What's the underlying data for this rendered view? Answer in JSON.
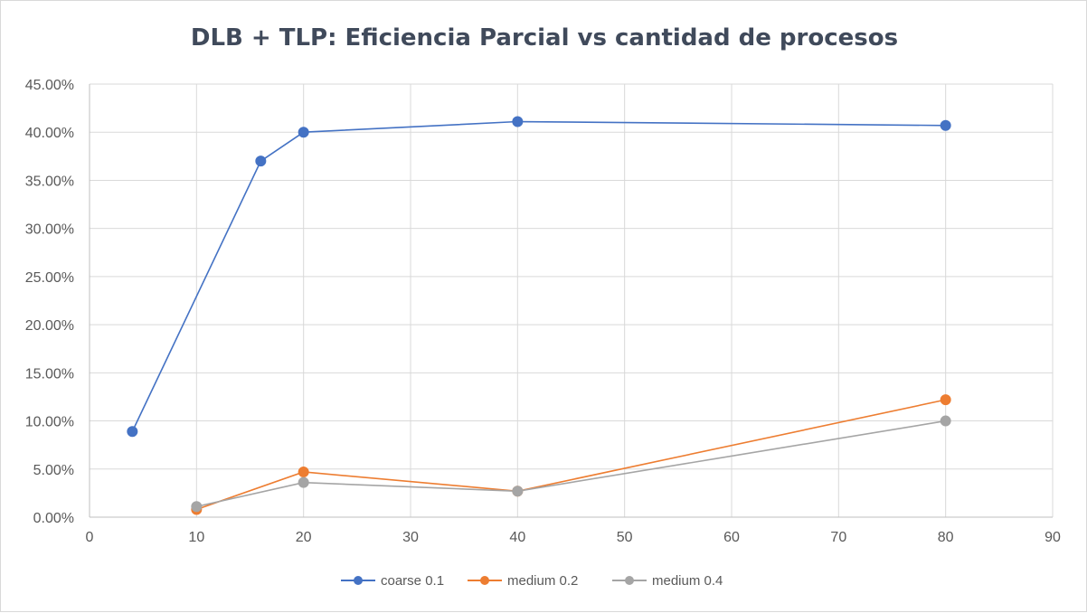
{
  "chart_data": {
    "type": "scatter",
    "title": "DLB + TLP: Eficiencia Parcial vs cantidad de procesos",
    "xlabel": "",
    "ylabel": "",
    "xlim": [
      0,
      90
    ],
    "ylim": [
      0,
      0.45
    ],
    "x_ticks": [
      0,
      10,
      20,
      30,
      40,
      50,
      60,
      70,
      80,
      90
    ],
    "y_ticks": [
      0,
      0.05,
      0.1,
      0.15,
      0.2,
      0.25,
      0.3,
      0.35,
      0.4,
      0.45
    ],
    "x_tick_labels": [
      "0",
      "10",
      "20",
      "30",
      "40",
      "50",
      "60",
      "70",
      "80",
      "90"
    ],
    "y_tick_labels": [
      "0.00%",
      "5.00%",
      "10.00%",
      "15.00%",
      "20.00%",
      "25.00%",
      "30.00%",
      "35.00%",
      "40.00%",
      "45.00%"
    ],
    "grid": true,
    "legend_position": "bottom",
    "series": [
      {
        "name": "coarse 0.1",
        "color": "#4472c4",
        "x": [
          4,
          16,
          20,
          40,
          80
        ],
        "y": [
          0.089,
          0.37,
          0.4,
          0.411,
          0.407
        ]
      },
      {
        "name": "medium 0.2",
        "color": "#ed7d31",
        "x": [
          10,
          20,
          40,
          80
        ],
        "y": [
          0.008,
          0.047,
          0.027,
          0.122
        ]
      },
      {
        "name": "medium 0.4",
        "color": "#a5a5a5",
        "x": [
          10,
          20,
          40,
          80
        ],
        "y": [
          0.011,
          0.036,
          0.027,
          0.1
        ]
      }
    ]
  }
}
